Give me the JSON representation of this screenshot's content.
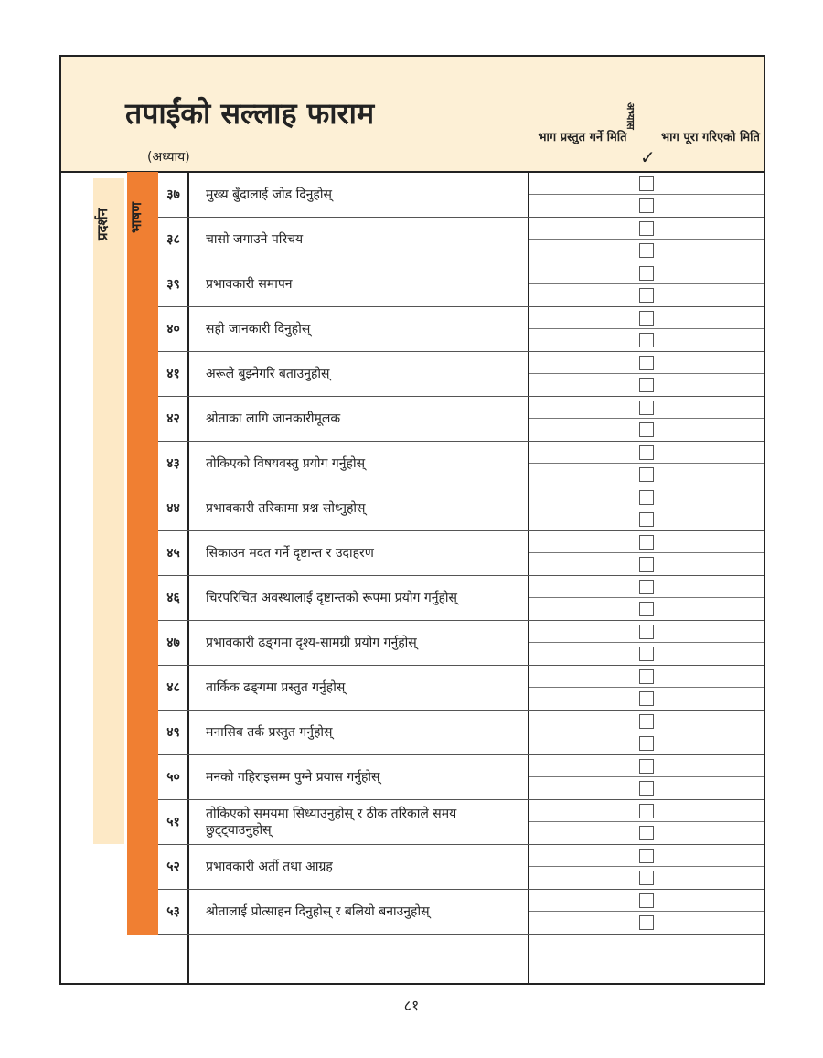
{
  "header": {
    "title": "तपाईंको सल्लाह फाराम",
    "chapter_label": "(अध्याय)",
    "col_presented": "भाग प्रस्तुत गर्ने मिति",
    "col_practice": "अभ्यास",
    "col_check": "✓",
    "col_completed": "भाग पूरा गरिएको मिति"
  },
  "side": {
    "presentation": "प्रदर्शन",
    "speech": "भाषण"
  },
  "colors": {
    "header_bg": "#fdf0d6",
    "presentation_bar": "#fde9c6",
    "speech_bar": "#f07f32"
  },
  "rows": [
    {
      "num": "३७",
      "text": "मुख्य बुँदालाई जोड दिनुहोस्"
    },
    {
      "num": "३८",
      "text": "चासो जगाउने परिचय"
    },
    {
      "num": "३९",
      "text": "प्रभावकारी समापन"
    },
    {
      "num": "४०",
      "text": "सही जानकारी दिनुहोस्"
    },
    {
      "num": "४१",
      "text": "अरूले बुझ्नेगरि बताउनुहोस्"
    },
    {
      "num": "४२",
      "text": "श्रोताका लागि जानकारीमूलक"
    },
    {
      "num": "४३",
      "text": "तोकिएको विषयवस्तु प्रयोग गर्नुहोस्"
    },
    {
      "num": "४४",
      "text": "प्रभावकारी तरिकामा प्रश्न सोध्नुहोस्"
    },
    {
      "num": "४५",
      "text": "सिकाउन मदत गर्ने दृष्टान्त र उदाहरण"
    },
    {
      "num": "४६",
      "text": "चिरपरिचित अवस्थालाई दृष्टान्तको रूपमा प्रयोग गर्नुहोस्"
    },
    {
      "num": "४७",
      "text": "प्रभावकारी ढङ्‌गमा दृश्य-सामग्री प्रयोग गर्नुहोस्"
    },
    {
      "num": "४८",
      "text": "तार्किक ढङ्‌गमा प्रस्तुत गर्नुहोस्"
    },
    {
      "num": "४९",
      "text": "मनासिब तर्क प्रस्तुत गर्नुहोस्"
    },
    {
      "num": "५०",
      "text": "मनको गहिराइसम्म पुग्ने प्रयास गर्नुहोस्"
    },
    {
      "num": "५१",
      "text": "तोकिएको समयमा सिध्याउनुहोस् र ठीक तरिकाले समय छुट्ट्याउनुहोस्"
    },
    {
      "num": "५२",
      "text": "प्रभावकारी अर्ती तथा आग्रह"
    },
    {
      "num": "५३",
      "text": "श्रोतालाई प्रोत्साहन दिनुहोस् र बलियो बनाउनुहोस्"
    }
  ],
  "page_number": "८१"
}
